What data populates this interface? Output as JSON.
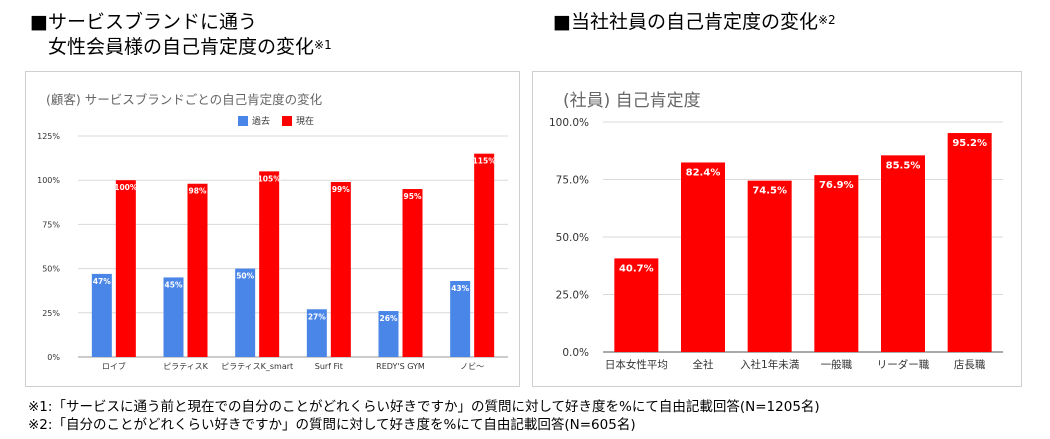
{
  "left_heading": {
    "line1": "■サービスブランドに通う",
    "line2": "女性会員様の自己肯定度の変化",
    "note_mark": "※1"
  },
  "right_heading": {
    "text": "■当社社員の自己肯定度の変化",
    "note_mark": "※2"
  },
  "notes": [
    "※1:「サービスに通う前と現在での自分のことがどれくらい好きですか」の質問に対して好き度を%にて自由記載回答(N=1205名)",
    "※2:「自分のことがどれくらい好きですか」の質問に対して好き度を%にて自由記載回答(N=605名)"
  ],
  "colors": {
    "past": "#4a86e8",
    "now": "#ff0000",
    "staff": "#ff0000",
    "grid": "#d9d9d9"
  },
  "chart_data": [
    {
      "type": "bar",
      "title": "(顧客) サービスブランドごとの自己肯定度の変化",
      "categories": [
        "ロイブ",
        "ピラティスK",
        "ピラティスK_smart",
        "Surf Fit",
        "REDY'S GYM",
        "ノビ〜"
      ],
      "series": [
        {
          "name": "過去",
          "values": [
            47,
            45,
            50,
            27,
            26,
            43
          ],
          "labels": [
            "47%",
            "45%",
            "50%",
            "27%",
            "26%",
            "43%"
          ]
        },
        {
          "name": "現在",
          "values": [
            100,
            98,
            105,
            99,
            95,
            115
          ],
          "labels": [
            "100%",
            "98%",
            "105%",
            "99%",
            "95%",
            "115%"
          ]
        }
      ],
      "ylim": [
        0,
        125
      ],
      "yticks": [
        "0%",
        "25%",
        "50%",
        "75%",
        "100%",
        "125%"
      ],
      "legend": "top",
      "grid": true
    },
    {
      "type": "bar",
      "title": "(社員) 自己肯定度",
      "categories": [
        "日本女性平均",
        "全社",
        "入社1年未満",
        "一般職",
        "リーダー職",
        "店長職"
      ],
      "values": [
        40.7,
        82.4,
        74.5,
        76.9,
        85.5,
        95.2
      ],
      "labels": [
        "40.7%",
        "82.4%",
        "74.5%",
        "76.9%",
        "85.5%",
        "95.2%"
      ],
      "ylim": [
        0,
        100
      ],
      "yticks": [
        "0.0%",
        "25.0%",
        "50.0%",
        "75.0%",
        "100.0%"
      ],
      "grid": true
    }
  ]
}
